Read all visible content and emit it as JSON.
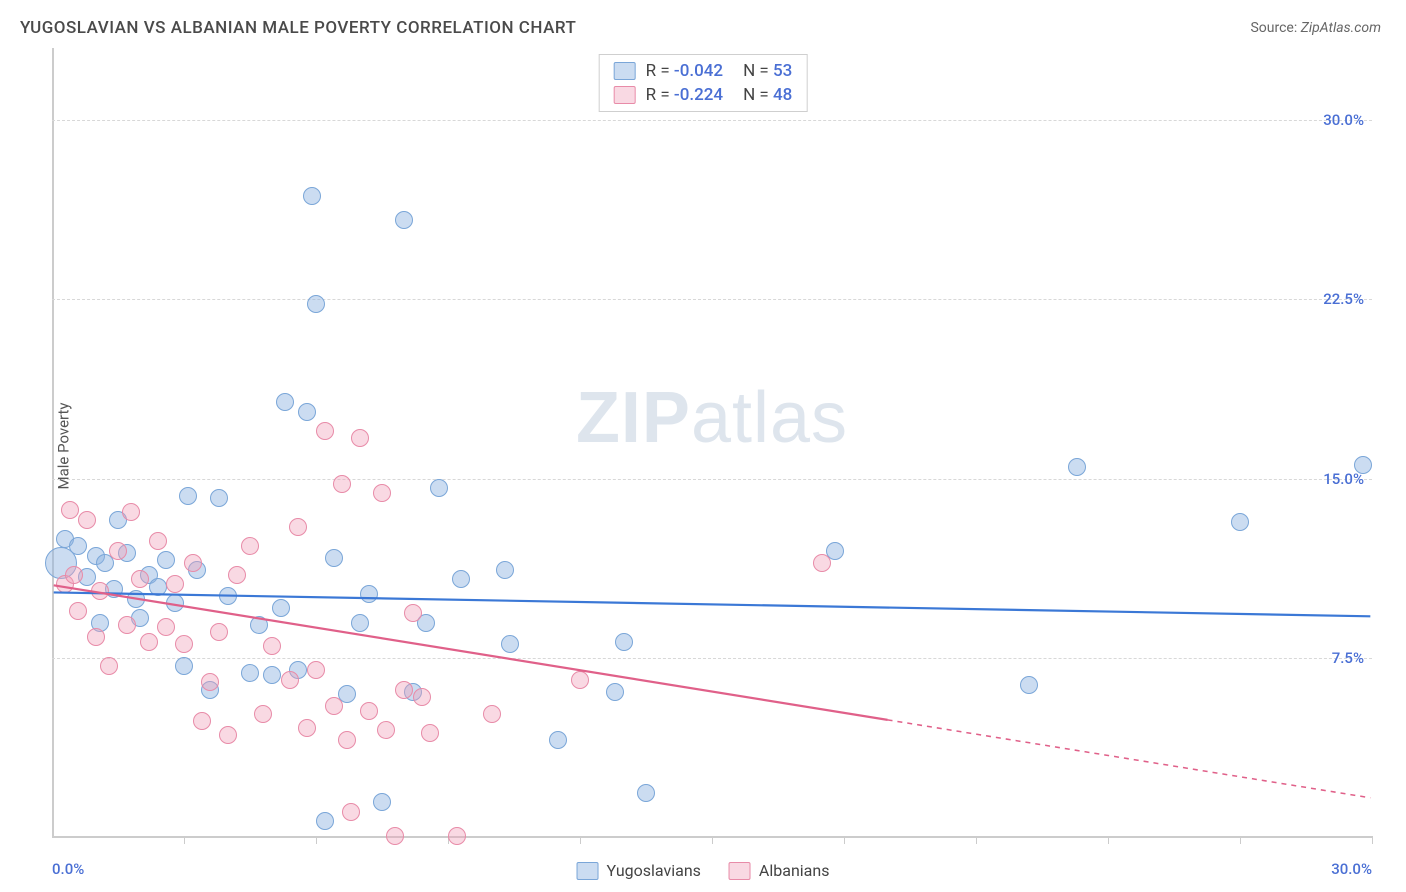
{
  "title": "YUGOSLAVIAN VS ALBANIAN MALE POVERTY CORRELATION CHART",
  "source_label": "Source:",
  "source_value": "ZipAtlas.com",
  "ylabel": "Male Poverty",
  "watermark": "ZIPatlas",
  "chart": {
    "type": "scatter",
    "xlim": [
      0,
      30
    ],
    "ylim": [
      0,
      33
    ],
    "x_tick_labels": {
      "left": "0.0%",
      "right": "30.0%"
    },
    "y_ticks": [
      {
        "value": 7.5,
        "label": "7.5%"
      },
      {
        "value": 15.0,
        "label": "15.0%"
      },
      {
        "value": 22.5,
        "label": "22.5%"
      },
      {
        "value": 30.0,
        "label": "30.0%"
      }
    ],
    "x_minor_ticks": [
      3,
      6,
      9,
      12,
      15,
      18,
      21,
      24,
      27,
      30
    ],
    "background_color": "#ffffff",
    "grid_color": "#d8d8d8",
    "axis_color": "#cccccc",
    "series": [
      {
        "name": "Yugoslavians",
        "color_fill": "rgba(139,178,225,0.45)",
        "color_stroke": "#7aa6d8",
        "marker_radius": 9,
        "R": "-0.042",
        "N": "53",
        "trend": {
          "y_at_x0": 10.2,
          "y_at_xmax": 9.2,
          "color": "#3b78d6",
          "width": 2.2,
          "solid_until_x": 30
        },
        "points": [
          {
            "x": 0.2,
            "y": 11.5,
            "r": 16
          },
          {
            "x": 0.3,
            "y": 12.5
          },
          {
            "x": 0.6,
            "y": 12.2
          },
          {
            "x": 0.8,
            "y": 10.9
          },
          {
            "x": 1.0,
            "y": 11.8
          },
          {
            "x": 1.1,
            "y": 9.0
          },
          {
            "x": 1.2,
            "y": 11.5
          },
          {
            "x": 1.4,
            "y": 10.4
          },
          {
            "x": 1.5,
            "y": 13.3
          },
          {
            "x": 1.7,
            "y": 11.9
          },
          {
            "x": 1.9,
            "y": 10.0
          },
          {
            "x": 2.0,
            "y": 9.2
          },
          {
            "x": 2.2,
            "y": 11.0
          },
          {
            "x": 2.4,
            "y": 10.5
          },
          {
            "x": 2.6,
            "y": 11.6
          },
          {
            "x": 2.8,
            "y": 9.8
          },
          {
            "x": 3.0,
            "y": 7.2
          },
          {
            "x": 3.1,
            "y": 14.3
          },
          {
            "x": 3.3,
            "y": 11.2
          },
          {
            "x": 3.6,
            "y": 6.2
          },
          {
            "x": 3.8,
            "y": 14.2
          },
          {
            "x": 4.0,
            "y": 10.1
          },
          {
            "x": 4.5,
            "y": 6.9
          },
          {
            "x": 4.7,
            "y": 8.9
          },
          {
            "x": 5.0,
            "y": 6.8
          },
          {
            "x": 5.2,
            "y": 9.6
          },
          {
            "x": 5.3,
            "y": 18.2
          },
          {
            "x": 5.6,
            "y": 7.0
          },
          {
            "x": 5.8,
            "y": 17.8
          },
          {
            "x": 5.9,
            "y": 26.8
          },
          {
            "x": 6.0,
            "y": 22.3
          },
          {
            "x": 6.2,
            "y": 0.7
          },
          {
            "x": 6.4,
            "y": 11.7
          },
          {
            "x": 6.7,
            "y": 6.0
          },
          {
            "x": 7.0,
            "y": 9.0
          },
          {
            "x": 7.2,
            "y": 10.2
          },
          {
            "x": 7.5,
            "y": 1.5
          },
          {
            "x": 8.0,
            "y": 25.8
          },
          {
            "x": 8.2,
            "y": 6.1
          },
          {
            "x": 8.5,
            "y": 9.0
          },
          {
            "x": 8.8,
            "y": 14.6
          },
          {
            "x": 9.3,
            "y": 10.8
          },
          {
            "x": 10.3,
            "y": 11.2
          },
          {
            "x": 10.4,
            "y": 8.1
          },
          {
            "x": 11.5,
            "y": 4.1
          },
          {
            "x": 12.8,
            "y": 6.1
          },
          {
            "x": 13.0,
            "y": 8.2
          },
          {
            "x": 13.5,
            "y": 1.9
          },
          {
            "x": 17.8,
            "y": 12.0
          },
          {
            "x": 22.2,
            "y": 6.4
          },
          {
            "x": 23.3,
            "y": 15.5
          },
          {
            "x": 27.0,
            "y": 13.2
          },
          {
            "x": 29.8,
            "y": 15.6
          }
        ]
      },
      {
        "name": "Albanians",
        "color_fill": "rgba(240,160,185,0.40)",
        "color_stroke": "#e88ba8",
        "marker_radius": 9,
        "R": "-0.224",
        "N": "48",
        "trend": {
          "y_at_x0": 10.5,
          "y_at_xmax": 1.6,
          "color": "#e06089",
          "width": 2.2,
          "solid_until_x": 19
        },
        "points": [
          {
            "x": 0.3,
            "y": 10.6
          },
          {
            "x": 0.4,
            "y": 13.7
          },
          {
            "x": 0.5,
            "y": 11.0
          },
          {
            "x": 0.6,
            "y": 9.5
          },
          {
            "x": 0.8,
            "y": 13.3
          },
          {
            "x": 1.0,
            "y": 8.4
          },
          {
            "x": 1.1,
            "y": 10.3
          },
          {
            "x": 1.3,
            "y": 7.2
          },
          {
            "x": 1.5,
            "y": 12.0
          },
          {
            "x": 1.7,
            "y": 8.9
          },
          {
            "x": 1.8,
            "y": 13.6
          },
          {
            "x": 2.0,
            "y": 10.8
          },
          {
            "x": 2.2,
            "y": 8.2
          },
          {
            "x": 2.4,
            "y": 12.4
          },
          {
            "x": 2.6,
            "y": 8.8
          },
          {
            "x": 2.8,
            "y": 10.6
          },
          {
            "x": 3.0,
            "y": 8.1
          },
          {
            "x": 3.2,
            "y": 11.5
          },
          {
            "x": 3.4,
            "y": 4.9
          },
          {
            "x": 3.6,
            "y": 6.5
          },
          {
            "x": 3.8,
            "y": 8.6
          },
          {
            "x": 4.0,
            "y": 4.3
          },
          {
            "x": 4.2,
            "y": 11.0
          },
          {
            "x": 4.5,
            "y": 12.2
          },
          {
            "x": 4.8,
            "y": 5.2
          },
          {
            "x": 5.0,
            "y": 8.0
          },
          {
            "x": 5.4,
            "y": 6.6
          },
          {
            "x": 5.6,
            "y": 13.0
          },
          {
            "x": 5.8,
            "y": 4.6
          },
          {
            "x": 6.0,
            "y": 7.0
          },
          {
            "x": 6.2,
            "y": 17.0
          },
          {
            "x": 6.4,
            "y": 5.5
          },
          {
            "x": 6.6,
            "y": 14.8
          },
          {
            "x": 6.7,
            "y": 4.1
          },
          {
            "x": 6.8,
            "y": 1.1
          },
          {
            "x": 7.0,
            "y": 16.7
          },
          {
            "x": 7.2,
            "y": 5.3
          },
          {
            "x": 7.5,
            "y": 14.4
          },
          {
            "x": 7.6,
            "y": 4.5
          },
          {
            "x": 7.8,
            "y": 0.1
          },
          {
            "x": 8.0,
            "y": 6.2
          },
          {
            "x": 8.2,
            "y": 9.4
          },
          {
            "x": 8.4,
            "y": 5.9
          },
          {
            "x": 8.6,
            "y": 4.4
          },
          {
            "x": 9.2,
            "y": 0.1
          },
          {
            "x": 10.0,
            "y": 5.2
          },
          {
            "x": 12.0,
            "y": 6.6
          },
          {
            "x": 17.5,
            "y": 11.5
          }
        ]
      }
    ]
  },
  "legend_bottom": [
    {
      "label": "Yugoslavians",
      "fill": "rgba(139,178,225,0.45)",
      "stroke": "#7aa6d8"
    },
    {
      "label": "Albanians",
      "fill": "rgba(240,160,185,0.40)",
      "stroke": "#e88ba8"
    }
  ]
}
